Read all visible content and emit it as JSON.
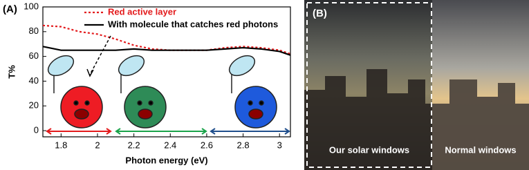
{
  "panel_a_label": "(A)",
  "chart_data": {
    "type": "line",
    "xlabel": "Photon energy (eV)",
    "ylabel": "T%",
    "x": [
      1.7,
      1.8,
      1.9,
      2.0,
      2.1,
      2.2,
      2.3,
      2.4,
      2.5,
      2.6,
      2.7,
      2.8,
      2.9,
      3.0,
      3.06
    ],
    "series": [
      {
        "name": "Red active layer",
        "color": "#e31a1c",
        "dash": "dotted",
        "values": [
          85,
          84,
          80,
          78,
          74,
          69,
          66,
          65,
          65,
          65,
          67,
          68,
          67,
          65,
          62
        ]
      },
      {
        "name": "With molecule that catches red photons",
        "color": "#000000",
        "dash": "solid",
        "values": [
          68,
          65,
          65,
          65,
          65,
          66,
          65,
          65,
          65,
          65,
          66,
          67,
          66,
          64,
          61
        ]
      }
    ],
    "xlim": [
      1.7,
      3.06
    ],
    "xticks": [
      1.8,
      2,
      2.2,
      2.4,
      2.6,
      2.8,
      3
    ],
    "ylim": [
      -5,
      100
    ],
    "yticks": [
      0,
      20,
      40,
      60,
      80,
      100
    ],
    "legend": "upper left"
  },
  "panel_b": {
    "label": "(B)",
    "left_caption": "Our solar windows",
    "right_caption": "Normal windows"
  }
}
